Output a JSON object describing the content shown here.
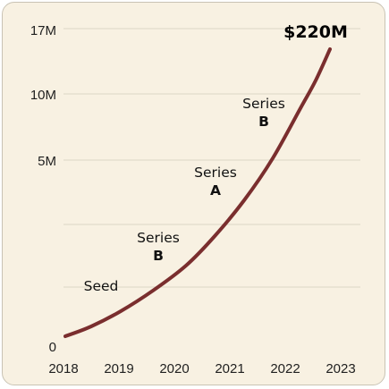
{
  "chart_data": {
    "type": "line",
    "title": "",
    "xlabel": "",
    "ylabel": "",
    "x_ticks": [
      "2018",
      "2019",
      "2020",
      "2021",
      "2022",
      "2023"
    ],
    "y_ticks": [
      {
        "label": "0",
        "value": 0
      },
      {
        "label": "5M",
        "value": 5
      },
      {
        "label": "10M",
        "value": 10
      },
      {
        "label": "17M",
        "value": 17
      }
    ],
    "gridlines": [
      2.5,
      7.5
    ],
    "grid": true,
    "color": "#7a2e2e",
    "x": [
      2018.0,
      2018.5,
      2019.0,
      2019.5,
      2020.0,
      2020.5,
      2021.0,
      2021.5,
      2022.0,
      2022.5,
      2022.75
    ],
    "y": [
      0.2,
      0.75,
      1.4,
      2.15,
      3.05,
      4.15,
      5.35,
      7.0,
      9.45,
      12.75,
      14.6
    ],
    "annotations": [
      {
        "lines": [
          "Seed"
        ],
        "bold_last": false,
        "x": 2018.6,
        "y": 2.3
      },
      {
        "lines": [
          "Series",
          "B"
        ],
        "bold_last": true,
        "x": 2019.7,
        "y": 3.9
      },
      {
        "lines": [
          "Series",
          "A"
        ],
        "bold_last": true,
        "x": 2020.7,
        "y": 6.7
      },
      {
        "lines": [
          "Series",
          "B"
        ],
        "bold_last": true,
        "x": 2021.55,
        "y": 10.4
      }
    ],
    "headline": {
      "text": "$220M",
      "x": 2022.4,
      "y": 15.8
    }
  }
}
